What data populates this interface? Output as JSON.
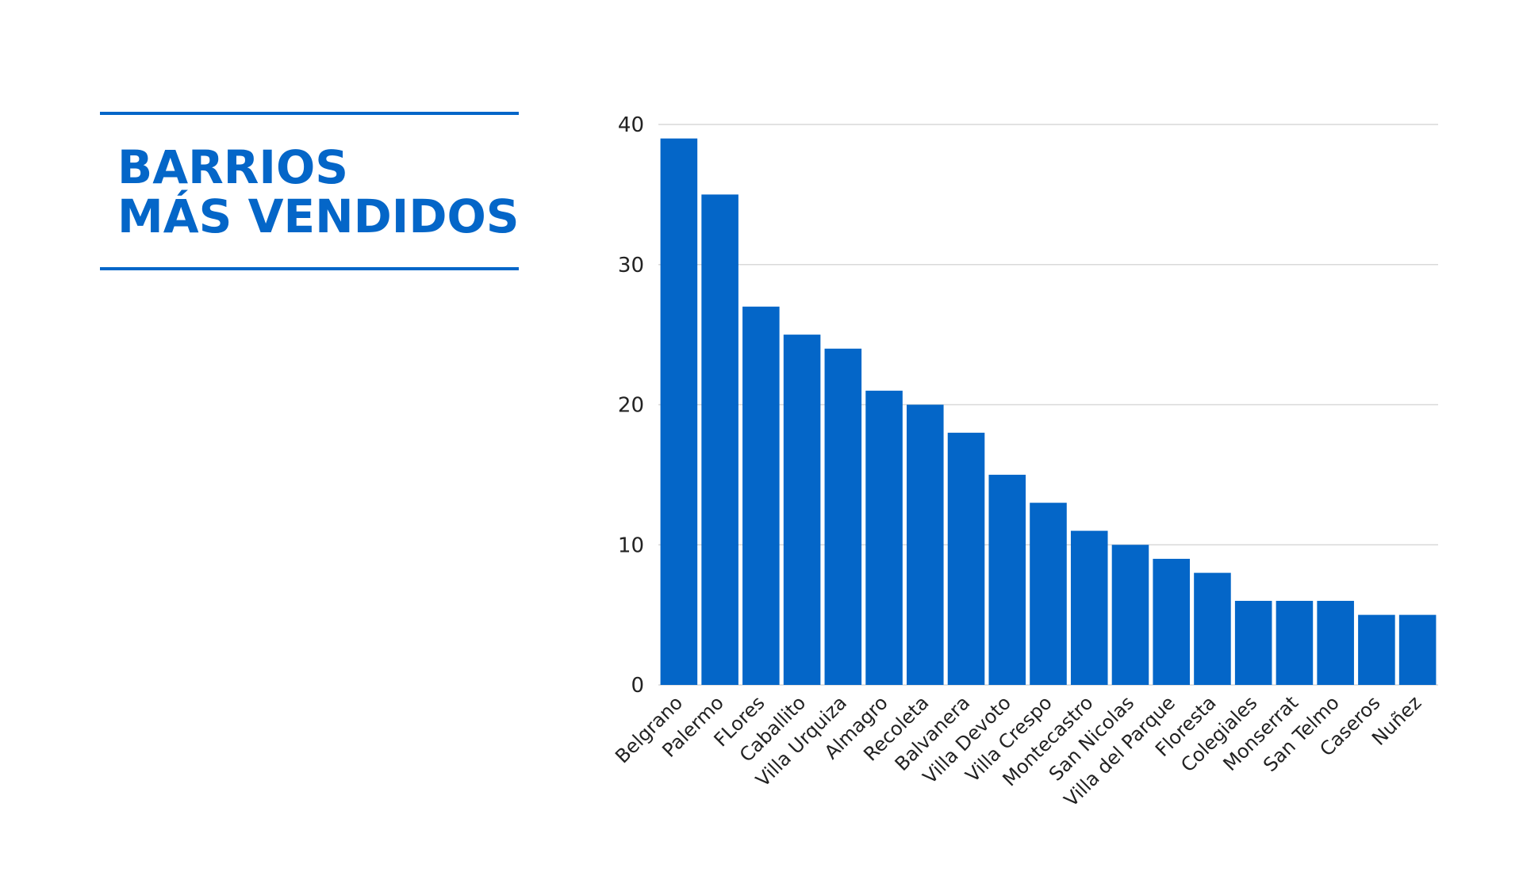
{
  "header": {
    "title_line1": "BARRIOS",
    "title_line2": "MÁS VENDIDOS"
  },
  "colors": {
    "accent": "#0466c8",
    "grid": "#d9d9d9"
  },
  "chart_data": {
    "type": "bar",
    "title": "BARRIOS MÁS VENDIDOS",
    "xlabel": "",
    "ylabel": "",
    "ylim": [
      0,
      40
    ],
    "yticks": [
      0,
      10,
      20,
      30,
      40
    ],
    "grid": true,
    "categories": [
      "Belgrano",
      "Palermo",
      "FLores",
      "Caballito",
      "Villa Urquiza",
      "Almagro",
      "Recoleta",
      "Balvanera",
      "Villa Devoto",
      "Villa Crespo",
      "Montecastro",
      "San Nicolas",
      "Villa del Parque",
      "Floresta",
      "Colegiales",
      "Monserrat",
      "San Telmo",
      "Caseros",
      "Nuñez"
    ],
    "values": [
      39,
      35,
      27,
      25,
      24,
      21,
      20,
      18,
      15,
      13,
      11,
      10,
      9,
      8,
      6,
      6,
      6,
      5,
      5
    ]
  }
}
